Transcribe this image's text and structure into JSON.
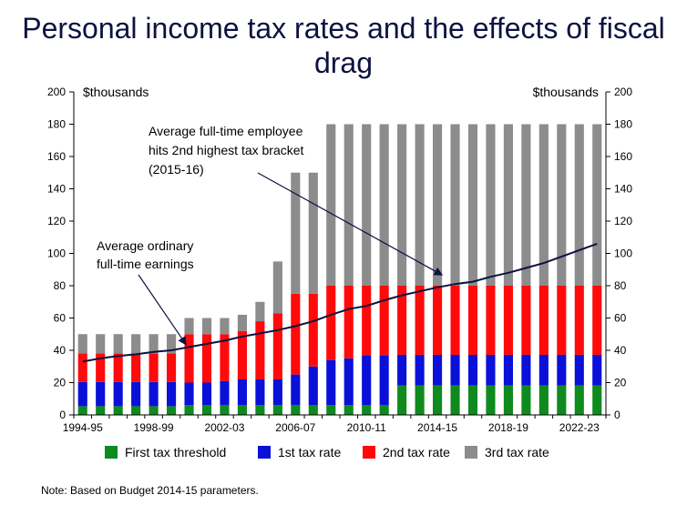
{
  "title": "Personal income tax rates and the effects of fiscal drag",
  "note": "Note: Based on Budget 2014-15 parameters.",
  "chart_data": {
    "type": "bar",
    "stacked": true,
    "y_unit_left": "$thousands",
    "y_unit_right": "$thousands",
    "ylim": [
      0,
      200
    ],
    "yticks": [
      0,
      20,
      40,
      60,
      80,
      100,
      120,
      140,
      160,
      180,
      200
    ],
    "grid": false,
    "legend_position": "bottom",
    "categories": [
      "1994-95",
      "1995-96",
      "1996-97",
      "1997-98",
      "1998-99",
      "1999-00",
      "2000-01",
      "2001-02",
      "2002-03",
      "2003-04",
      "2004-05",
      "2005-06",
      "2006-07",
      "2007-08",
      "2008-09",
      "2009-10",
      "2010-11",
      "2011-12",
      "2012-13",
      "2013-14",
      "2014-15",
      "2015-16",
      "2016-17",
      "2017-18",
      "2018-19",
      "2019-20",
      "2020-21",
      "2021-22",
      "2022-23",
      "2023-24"
    ],
    "xtick_labels": [
      "1994-95",
      "1998-99",
      "2002-03",
      "2006-07",
      "2010-11",
      "2014-15",
      "2018-19",
      "2022-23"
    ],
    "series": [
      {
        "name": "First tax threshold",
        "color": "#0f8a1e",
        "values": [
          5.4,
          5.4,
          5.4,
          5.4,
          5.4,
          5.4,
          6,
          6,
          6,
          6,
          6,
          6,
          6,
          6,
          6,
          6,
          6,
          6,
          18.2,
          18.2,
          18.2,
          18.2,
          18.2,
          18.2,
          18.2,
          18.2,
          18.2,
          18.2,
          18.2,
          18.2
        ]
      },
      {
        "name": "1st tax rate",
        "color": "#0a10d8",
        "values": [
          15,
          15,
          15,
          15,
          15,
          15,
          14,
          14,
          15,
          16,
          16,
          16,
          19,
          24,
          28,
          29,
          31,
          31,
          19,
          19,
          19,
          19,
          19,
          19,
          19,
          19,
          19,
          19,
          19,
          19
        ]
      },
      {
        "name": "2nd tax rate",
        "color": "#ff0a0a",
        "values": [
          17.6,
          17.6,
          17.6,
          17.6,
          17.6,
          17.6,
          30,
          30,
          29,
          30,
          36,
          41,
          50,
          45,
          46,
          45,
          43,
          43,
          42.8,
          42.8,
          42.8,
          42.8,
          42.8,
          42.8,
          42.8,
          42.8,
          42.8,
          42.8,
          42.8,
          42.8
        ]
      },
      {
        "name": "3rd tax rate",
        "color": "#8c8c8c",
        "values": [
          12,
          12,
          12,
          12,
          12,
          12,
          10,
          10,
          10,
          10,
          12,
          32,
          75,
          75,
          100,
          100,
          100,
          100,
          100,
          100,
          100,
          100,
          100,
          100,
          100,
          100,
          100,
          100,
          100,
          100
        ]
      }
    ],
    "line": {
      "name": "Average ordinary full-time earnings",
      "color": "#0d1240",
      "values": [
        33,
        35,
        36.5,
        37.5,
        39,
        40,
        42,
        44,
        46,
        48.5,
        50.5,
        52.5,
        55,
        58,
        62,
        65.5,
        67.5,
        71,
        74,
        76.5,
        79,
        81,
        82.5,
        85.5,
        88,
        91,
        94,
        98,
        102,
        106
      ]
    },
    "annotations": [
      {
        "text_lines": [
          "Average full-time employee",
          "hits 2nd highest tax bracket",
          "(2015-16)"
        ],
        "arrow_to_category": "2014-15",
        "arrow_to_value": 87
      },
      {
        "text_lines": [
          "Average ordinary",
          "full-time earnings"
        ],
        "arrow_to_category": "2000-01",
        "arrow_to_value": 43
      }
    ]
  }
}
